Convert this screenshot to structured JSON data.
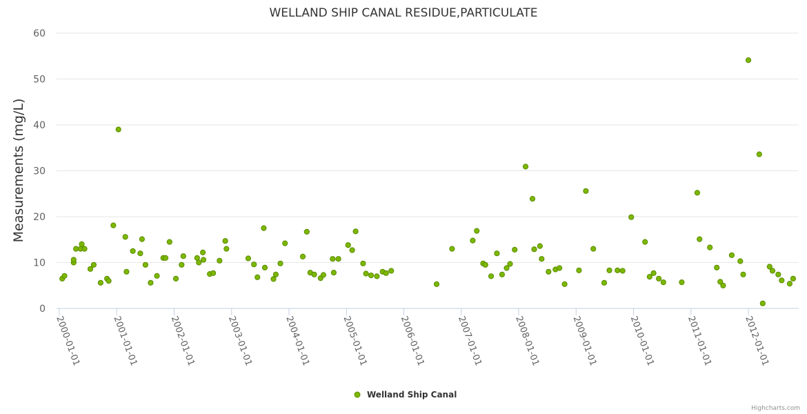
{
  "chart_data": {
    "type": "scatter",
    "title": "WELLAND SHIP CANAL RESIDUE,PARTICULATE",
    "xlabel": "",
    "ylabel": "Measurements (mg/L)",
    "ylim": [
      0,
      60
    ],
    "yticks": [
      "0",
      "10",
      "20",
      "30",
      "40",
      "50",
      "60"
    ],
    "xlim": [
      1999.95,
      2012.85
    ],
    "xticks": [
      {
        "label": "2000-01-01",
        "value": 2000
      },
      {
        "label": "2001-01-01",
        "value": 2001
      },
      {
        "label": "2002-01-01",
        "value": 2002
      },
      {
        "label": "2003-01-01",
        "value": 2003
      },
      {
        "label": "2004-01-01",
        "value": 2004
      },
      {
        "label": "2005-01-01",
        "value": 2005
      },
      {
        "label": "2006-01-01",
        "value": 2006
      },
      {
        "label": "2007-01-01",
        "value": 2007
      },
      {
        "label": "2008-01-01",
        "value": 2008
      },
      {
        "label": "2009-01-01",
        "value": 2009
      },
      {
        "label": "2010-01-01",
        "value": 2010
      },
      {
        "label": "2011-01-01",
        "value": 2011
      },
      {
        "label": "2012-01-01",
        "value": 2012
      }
    ],
    "grid": true,
    "legend_position": "bottom-center",
    "series": [
      {
        "name": "Welland Ship Canal",
        "color": "#7cb800",
        "stroke": "#5a8a00",
        "points": [
          [
            2000.05,
            6.5
          ],
          [
            2000.09,
            7.1
          ],
          [
            2000.25,
            10.0
          ],
          [
            2000.25,
            10.6
          ],
          [
            2000.29,
            13.0
          ],
          [
            2000.37,
            13.0
          ],
          [
            2000.39,
            14.0
          ],
          [
            2000.44,
            13.0
          ],
          [
            2000.54,
            8.6
          ],
          [
            2000.6,
            9.5
          ],
          [
            2000.72,
            5.6
          ],
          [
            2000.83,
            6.5
          ],
          [
            2000.86,
            6.0
          ],
          [
            2000.94,
            18.1
          ],
          [
            2001.03,
            39.0
          ],
          [
            2001.15,
            15.6
          ],
          [
            2001.17,
            8.0
          ],
          [
            2001.28,
            12.5
          ],
          [
            2001.41,
            12.0
          ],
          [
            2001.44,
            15.1
          ],
          [
            2001.5,
            9.5
          ],
          [
            2001.59,
            5.6
          ],
          [
            2001.7,
            7.1
          ],
          [
            2001.81,
            11.0
          ],
          [
            2001.85,
            11.0
          ],
          [
            2001.92,
            14.5
          ],
          [
            2002.03,
            6.5
          ],
          [
            2002.13,
            9.5
          ],
          [
            2002.16,
            11.4
          ],
          [
            2002.4,
            11.0
          ],
          [
            2002.43,
            10.0
          ],
          [
            2002.5,
            12.2
          ],
          [
            2002.51,
            10.6
          ],
          [
            2002.62,
            7.5
          ],
          [
            2002.68,
            7.7
          ],
          [
            2002.79,
            10.4
          ],
          [
            2002.89,
            14.7
          ],
          [
            2002.91,
            13.0
          ],
          [
            2003.29,
            10.9
          ],
          [
            2003.39,
            9.6
          ],
          [
            2003.45,
            6.8
          ],
          [
            2003.56,
            17.5
          ],
          [
            2003.58,
            8.9
          ],
          [
            2003.73,
            6.4
          ],
          [
            2003.77,
            7.4
          ],
          [
            2003.85,
            9.8
          ],
          [
            2003.93,
            14.2
          ],
          [
            2004.24,
            11.3
          ],
          [
            2004.31,
            16.7
          ],
          [
            2004.37,
            7.8
          ],
          [
            2004.44,
            7.4
          ],
          [
            2004.55,
            6.6
          ],
          [
            2004.6,
            7.3
          ],
          [
            2004.76,
            10.8
          ],
          [
            2004.78,
            7.8
          ],
          [
            2004.86,
            10.8
          ],
          [
            2005.03,
            13.8
          ],
          [
            2005.1,
            12.7
          ],
          [
            2005.16,
            16.8
          ],
          [
            2005.29,
            9.8
          ],
          [
            2005.34,
            7.6
          ],
          [
            2005.43,
            7.2
          ],
          [
            2005.53,
            7.0
          ],
          [
            2005.63,
            8.0
          ],
          [
            2005.69,
            7.7
          ],
          [
            2005.78,
            8.2
          ],
          [
            2006.57,
            5.3
          ],
          [
            2006.84,
            13.0
          ],
          [
            2007.2,
            14.8
          ],
          [
            2007.27,
            16.9
          ],
          [
            2007.38,
            9.8
          ],
          [
            2007.42,
            9.5
          ],
          [
            2007.52,
            7.0
          ],
          [
            2007.62,
            12.0
          ],
          [
            2007.71,
            7.4
          ],
          [
            2007.79,
            8.8
          ],
          [
            2007.85,
            9.7
          ],
          [
            2007.93,
            12.8
          ],
          [
            2008.12,
            30.9
          ],
          [
            2008.24,
            23.9
          ],
          [
            2008.27,
            12.9
          ],
          [
            2008.37,
            13.6
          ],
          [
            2008.4,
            10.8
          ],
          [
            2008.52,
            8.0
          ],
          [
            2008.64,
            8.5
          ],
          [
            2008.71,
            8.8
          ],
          [
            2008.8,
            5.3
          ],
          [
            2009.05,
            8.3
          ],
          [
            2009.17,
            25.6
          ],
          [
            2009.3,
            13.0
          ],
          [
            2009.49,
            5.6
          ],
          [
            2009.58,
            8.3
          ],
          [
            2009.72,
            8.3
          ],
          [
            2009.81,
            8.2
          ],
          [
            2009.96,
            19.9
          ],
          [
            2010.2,
            14.5
          ],
          [
            2010.28,
            6.9
          ],
          [
            2010.35,
            7.7
          ],
          [
            2010.44,
            6.5
          ],
          [
            2010.52,
            5.7
          ],
          [
            2010.84,
            5.7
          ],
          [
            2011.11,
            25.2
          ],
          [
            2011.15,
            15.1
          ],
          [
            2011.33,
            13.3
          ],
          [
            2011.45,
            8.9
          ],
          [
            2011.51,
            5.8
          ],
          [
            2011.56,
            5.0
          ],
          [
            2011.71,
            11.6
          ],
          [
            2011.86,
            10.3
          ],
          [
            2011.91,
            7.4
          ],
          [
            2012.0,
            54.1
          ],
          [
            2012.19,
            33.6
          ],
          [
            2012.25,
            1.1
          ],
          [
            2012.37,
            9.1
          ],
          [
            2012.42,
            8.2
          ],
          [
            2012.52,
            7.4
          ],
          [
            2012.58,
            6.1
          ],
          [
            2012.72,
            5.4
          ],
          [
            2012.78,
            6.5
          ]
        ]
      }
    ]
  },
  "credits": "Highcharts.com"
}
